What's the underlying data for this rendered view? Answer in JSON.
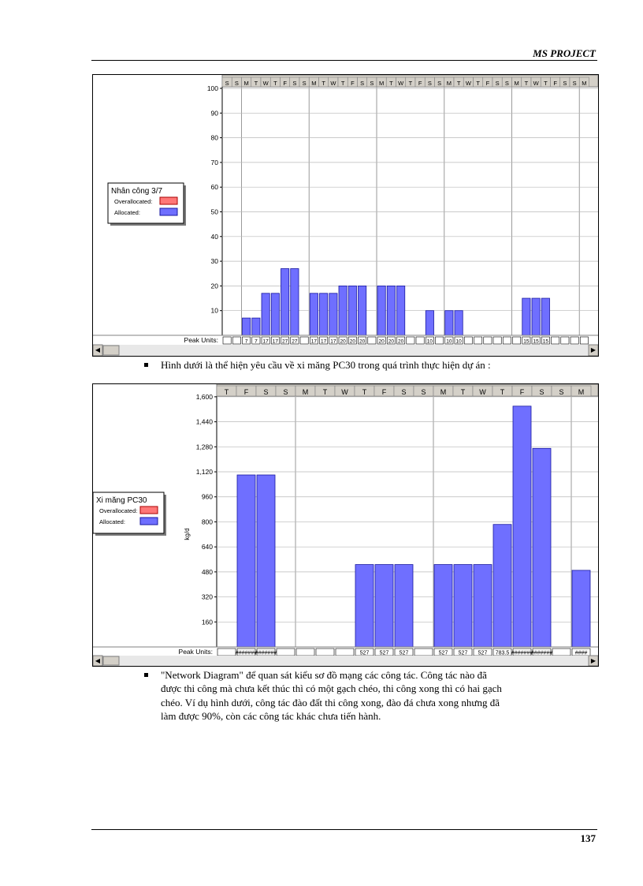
{
  "header": {
    "title": "MS PROJECT"
  },
  "page_number": "137",
  "chart1": {
    "legend": {
      "title": "Nhân công 3/7",
      "overallocated": "Overallocated:",
      "allocated": "Allocated:"
    },
    "colors": {
      "allocated": "#6f6fff",
      "overallocated": "#ff7777"
    },
    "days": [
      "S",
      "S",
      "M",
      "T",
      "W",
      "T",
      "F",
      "S",
      "S",
      "M",
      "T",
      "W",
      "T",
      "F",
      "S",
      "S",
      "M",
      "T",
      "W",
      "T",
      "F",
      "S",
      "S",
      "M",
      "T",
      "W",
      "T",
      "F",
      "S",
      "S",
      "M",
      "T",
      "W",
      "T",
      "F",
      "S",
      "S",
      "M"
    ],
    "peak_label": "Peak Units:"
  },
  "chart2": {
    "legend": {
      "title": "Xi măng PC30",
      "overallocated": "Overallocated:",
      "allocated": "Allocated:"
    },
    "colors": {
      "allocated": "#6f6fff",
      "overallocated": "#ff7777"
    },
    "days": [
      "T",
      "F",
      "S",
      "S",
      "M",
      "T",
      "W",
      "T",
      "F",
      "S",
      "S",
      "M",
      "T",
      "W",
      "T",
      "F",
      "S",
      "S",
      "M"
    ],
    "peak_label": "Peak Units:",
    "unit_label": "kg/d"
  },
  "chart_data": [
    {
      "type": "bar",
      "title": "Nhân công 3/7",
      "ylim": [
        0,
        100
      ],
      "yticks": [
        10,
        20,
        30,
        40,
        50,
        60,
        70,
        80,
        90,
        100
      ],
      "series": [
        {
          "name": "Allocated",
          "values": [
            0,
            0,
            7,
            7,
            17,
            17,
            27,
            27,
            0,
            17,
            17,
            17,
            20,
            20,
            20,
            0,
            20,
            20,
            20,
            0,
            0,
            10,
            0,
            10,
            10,
            0,
            0,
            0,
            0,
            0,
            0,
            15,
            15,
            15,
            0,
            0,
            0,
            0
          ]
        },
        {
          "name": "Overallocated",
          "values": []
        }
      ],
      "peak_units": [
        "",
        "",
        "7",
        "7",
        "17",
        "17",
        "27",
        "27",
        "",
        "17",
        "17",
        "17",
        "20",
        "20",
        "20",
        "",
        "20",
        "20",
        "20",
        "",
        "",
        "10",
        "",
        "10",
        "10",
        "",
        "",
        "",
        "",
        "",
        "",
        "15",
        "15",
        "15",
        "",
        "",
        "",
        ""
      ],
      "grid": true,
      "legend": "left"
    },
    {
      "type": "bar",
      "title": "Xi măng PC30",
      "ylabel": "kg/d",
      "ylim": [
        0,
        1650
      ],
      "yticks": [
        "160",
        "320",
        "480",
        "640",
        "800",
        "960",
        "1,120",
        "1,280",
        "1,440",
        "1,600"
      ],
      "series": [
        {
          "name": "Allocated",
          "values": [
            0,
            1100,
            1100,
            0,
            0,
            0,
            0,
            527,
            527,
            527,
            0,
            527,
            527,
            527,
            783.5,
            1540,
            1270,
            0,
            490
          ]
        },
        {
          "name": "Overallocated",
          "values": []
        }
      ],
      "peak_units": [
        "",
        "#######",
        "#######",
        "",
        "",
        "",
        "",
        "527",
        "527",
        "527",
        "",
        "527",
        "527",
        "527",
        "783.5",
        "#######",
        "#######",
        "",
        "####"
      ],
      "grid": true,
      "legend": "left"
    }
  ],
  "text": {
    "bullet1": "Hình dưới là thể hiện yêu cầu về xi măng PC30 trong quá trình thực hiện dự án :",
    "bullet2_lines": [
      "\"Network Diagram\" để quan sát kiểu sơ đồ mạng các công tác. Công tác nào đã",
      "được thi công mà chưa kết thúc thì có một gạch chéo, thi công xong thì có hai gạch",
      "chéo. Ví dụ hình dưới, công tác đào đất thi công xong, đào đá chưa xong nhưng đã",
      "làm được 90%, còn các công tác khác chưa tiến hành."
    ]
  }
}
